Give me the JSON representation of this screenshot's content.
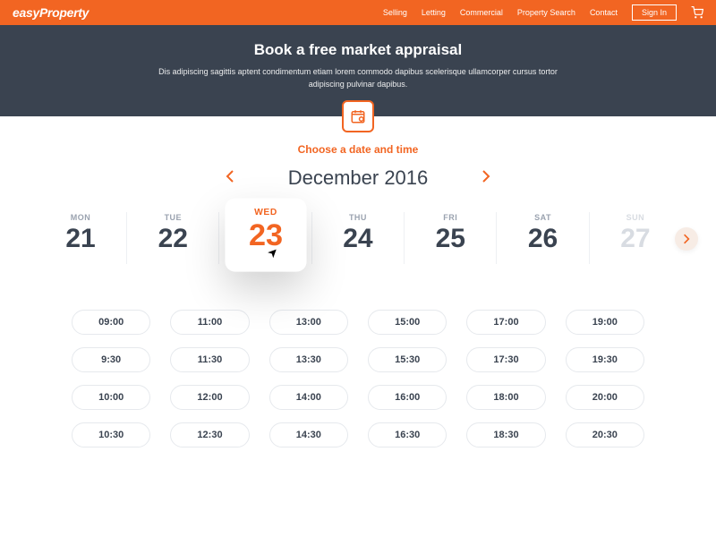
{
  "colors": {
    "brand_orange": "#f26522",
    "hero_bg": "#3a4350",
    "text_dark": "#3a4350",
    "muted": "#9aa2af",
    "disabled": "#d8dce2",
    "pill_border": "#e6e9ed",
    "next_btn_bg": "#f7ece5"
  },
  "header": {
    "logo": "easyProperty",
    "nav": [
      "Selling",
      "Letting",
      "Commercial",
      "Property Search",
      "Contact"
    ],
    "signin": "Sign In"
  },
  "hero": {
    "title": "Book a free market appraisal",
    "tagline": "Dis adipiscing sagittis aptent condimentum etiam lorem commodo dapibus scelerisque ullamcorper cursus tortor adipiscing pulvinar dapibus."
  },
  "subtitle": "Choose a date and time",
  "month": {
    "label": "December 2016"
  },
  "days": [
    {
      "dow": "MON",
      "num": "21",
      "state": "normal"
    },
    {
      "dow": "TUE",
      "num": "22",
      "state": "normal"
    },
    {
      "dow": "WED",
      "num": "23",
      "state": "selected"
    },
    {
      "dow": "THU",
      "num": "24",
      "state": "normal"
    },
    {
      "dow": "FRI",
      "num": "25",
      "state": "normal"
    },
    {
      "dow": "SAT",
      "num": "26",
      "state": "normal"
    },
    {
      "dow": "SUN",
      "num": "27",
      "state": "disabled"
    }
  ],
  "times_grid": {
    "columns": [
      [
        "09:00",
        "9:30",
        "10:00",
        "10:30"
      ],
      [
        "11:00",
        "11:30",
        "12:00",
        "12:30"
      ],
      [
        "13:00",
        "13:30",
        "14:00",
        "14:30"
      ],
      [
        "15:00",
        "15:30",
        "16:00",
        "16:30"
      ],
      [
        "17:00",
        "17:30",
        "18:00",
        "18:30"
      ],
      [
        "19:00",
        "19:30",
        "20:00",
        "20:30"
      ]
    ]
  }
}
